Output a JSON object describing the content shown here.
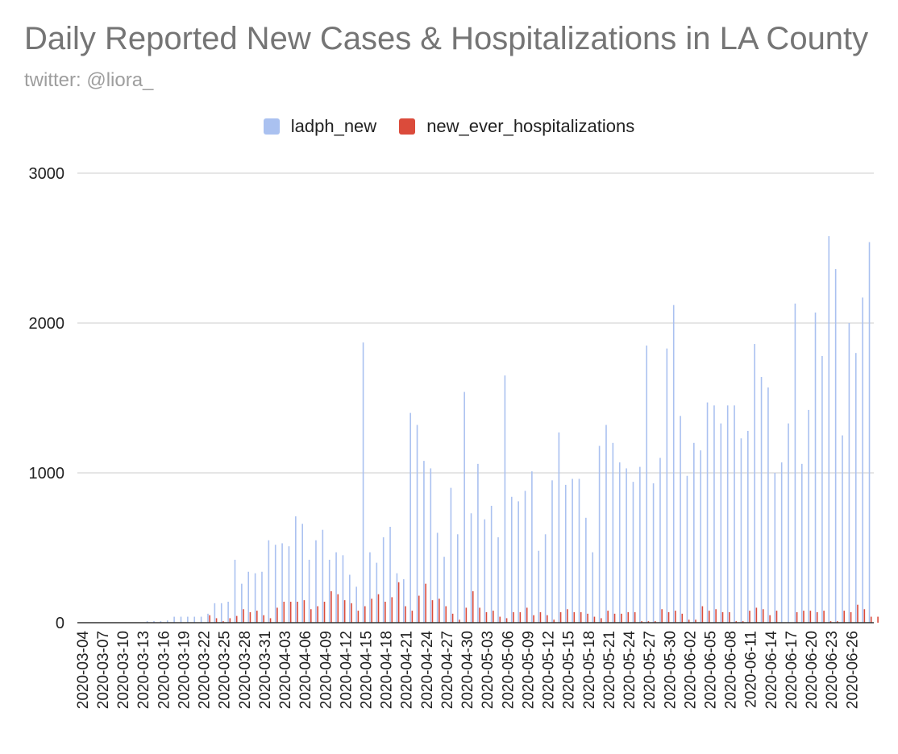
{
  "title": "Daily Reported New Cases & Hospitalizations in LA County",
  "subtitle": "twitter: @liora_",
  "colors": {
    "ladph_new": "#aac1f0",
    "new_ever_hospitalizations": "#db4b3b",
    "grid": "#cccccc",
    "axis": "#333333"
  },
  "chart_data": {
    "type": "bar",
    "title": "Daily Reported New Cases & Hospitalizations in LA County",
    "subtitle": "twitter: @liora_",
    "legend_position": "top-center",
    "ylim": [
      0,
      3000
    ],
    "yticks": [
      0,
      1000,
      2000,
      3000
    ],
    "grid": true,
    "start_date": "2020-03-04",
    "xtick_labels": [
      "2020-03-04",
      "2020-03-07",
      "2020-03-10",
      "2020-03-13",
      "2020-03-16",
      "2020-03-19",
      "2020-03-22",
      "2020-03-25",
      "2020-03-28",
      "2020-03-31",
      "2020-04-03",
      "2020-04-06",
      "2020-04-09",
      "2020-04-12",
      "2020-04-15",
      "2020-04-18",
      "2020-04-21",
      "2020-04-24",
      "2020-04-27",
      "2020-04-30",
      "2020-05-03",
      "2020-05-06",
      "2020-05-09",
      "2020-05-12",
      "2020-05-15",
      "2020-05-18",
      "2020-05-21",
      "2020-05-24",
      "2020-05-27",
      "2020-05-30",
      "2020-06-02",
      "2020-06-05",
      "2020-06-08",
      "2020-06-11",
      "2020-06-14",
      "2020-06-17",
      "2020-06-20",
      "2020-06-23",
      "2020-06-26"
    ],
    "series": [
      {
        "name": "ladph_new",
        "values": [
          0,
          0,
          0,
          0,
          0,
          0,
          0,
          0,
          0,
          0,
          10,
          10,
          10,
          15,
          40,
          40,
          40,
          40,
          40,
          60,
          130,
          130,
          140,
          420,
          260,
          340,
          330,
          340,
          550,
          520,
          530,
          510,
          710,
          660,
          420,
          550,
          620,
          420,
          470,
          450,
          320,
          240,
          1870,
          470,
          400,
          570,
          640,
          330,
          290,
          1400,
          1320,
          1080,
          1030,
          600,
          440,
          900,
          590,
          1540,
          730,
          1060,
          690,
          780,
          570,
          1650,
          840,
          810,
          880,
          1010,
          480,
          590,
          950,
          1270,
          920,
          960,
          960,
          700,
          470,
          1180,
          1320,
          1200,
          1070,
          1030,
          940,
          1040,
          1850,
          930,
          1100,
          1830,
          2120,
          1380,
          980,
          1200,
          1150,
          1470,
          1450,
          1330,
          1450,
          1450,
          1230,
          1280,
          1860,
          1640,
          1570,
          1000,
          1070,
          1330,
          2130,
          1060,
          1420,
          2070,
          1780,
          2580,
          2360,
          1250,
          2000,
          1800,
          2170,
          2540
        ]
      },
      {
        "name": "new_ever_hospitalizations",
        "values": [
          0,
          0,
          0,
          0,
          0,
          0,
          0,
          0,
          0,
          0,
          0,
          0,
          0,
          0,
          0,
          0,
          0,
          0,
          0,
          50,
          30,
          10,
          30,
          45,
          90,
          70,
          80,
          50,
          30,
          100,
          140,
          140,
          140,
          150,
          90,
          110,
          140,
          210,
          190,
          150,
          130,
          80,
          110,
          160,
          190,
          140,
          170,
          270,
          110,
          80,
          180,
          260,
          150,
          160,
          110,
          60,
          20,
          100,
          210,
          100,
          70,
          80,
          40,
          30,
          70,
          70,
          100,
          50,
          70,
          50,
          20,
          70,
          90,
          70,
          70,
          60,
          40,
          30,
          80,
          60,
          60,
          70,
          70,
          10,
          10,
          10,
          90,
          70,
          80,
          60,
          20,
          20,
          110,
          80,
          90,
          70,
          70,
          10,
          10,
          80,
          100,
          90,
          50,
          80,
          0,
          0,
          70,
          80,
          80,
          70,
          80,
          10,
          10,
          80,
          70,
          120,
          90,
          40,
          40
        ]
      }
    ]
  }
}
